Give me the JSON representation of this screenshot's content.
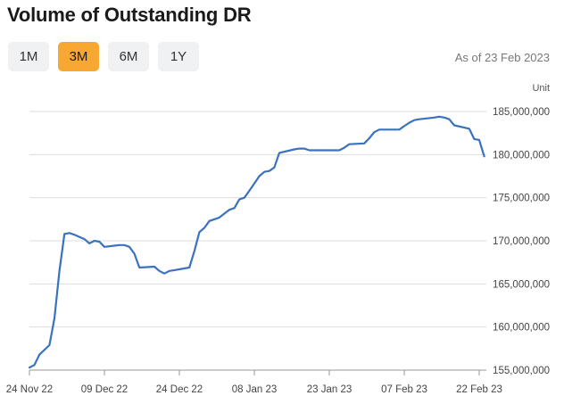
{
  "title": "Volume of Outstanding DR",
  "range_buttons": [
    "1M",
    "3M",
    "6M",
    "1Y"
  ],
  "active_range": "3M",
  "as_of": "As of 23 Feb 2023",
  "colors": {
    "line": "#3a72c0",
    "accent": "#f7a832",
    "grid": "#dddddd"
  },
  "chart_data": {
    "type": "line",
    "title": "Volume of Outstanding DR",
    "unit_label": "Unit",
    "ylim": [
      155000000,
      185000000
    ],
    "yticks": [
      155000000,
      160000000,
      165000000,
      170000000,
      175000000,
      180000000,
      185000000
    ],
    "ytick_labels": [
      "155,000,000",
      "160,000,000",
      "165,000,000",
      "170,000,000",
      "175,000,000",
      "180,000,000",
      "185,000,000"
    ],
    "xticks": [
      "2022-11-24",
      "2022-12-09",
      "2022-12-24",
      "2023-01-08",
      "2023-01-23",
      "2023-02-07",
      "2023-02-22"
    ],
    "xtick_labels": [
      "24 Nov 22",
      "09 Dec 22",
      "24 Dec 22",
      "08 Jan 23",
      "23 Jan 23",
      "07 Feb 23",
      "22 Feb 23"
    ],
    "grid": "horizontal",
    "series": [
      {
        "x": [
          "2022-11-24",
          "2022-11-25",
          "2022-11-26",
          "2022-11-28",
          "2022-11-29",
          "2022-11-30",
          "2022-12-01",
          "2022-12-02",
          "2022-12-03",
          "2022-12-05",
          "2022-12-06",
          "2022-12-07",
          "2022-12-08",
          "2022-12-09",
          "2022-12-12",
          "2022-12-13",
          "2022-12-14",
          "2022-12-15",
          "2022-12-16",
          "2022-12-19",
          "2022-12-20",
          "2022-12-21",
          "2022-12-22",
          "2022-12-23",
          "2022-12-26",
          "2022-12-27",
          "2022-12-28",
          "2022-12-29",
          "2022-12-30",
          "2023-01-01",
          "2023-01-03",
          "2023-01-04",
          "2023-01-05",
          "2023-01-06",
          "2023-01-07",
          "2023-01-09",
          "2023-01-10",
          "2023-01-11",
          "2023-01-12",
          "2023-01-13",
          "2023-01-16",
          "2023-01-17",
          "2023-01-18",
          "2023-01-19",
          "2023-01-20",
          "2023-01-23",
          "2023-01-24",
          "2023-01-25",
          "2023-01-26",
          "2023-01-27",
          "2023-01-30",
          "2023-01-31",
          "2023-02-01",
          "2023-02-02",
          "2023-02-03",
          "2023-02-06",
          "2023-02-07",
          "2023-02-08",
          "2023-02-09",
          "2023-02-10",
          "2023-02-13",
          "2023-02-14",
          "2023-02-15",
          "2023-02-16",
          "2023-02-17",
          "2023-02-20",
          "2023-02-21",
          "2023-02-22",
          "2023-02-23"
        ],
        "y": [
          155300000,
          155600000,
          156800000,
          157900000,
          161000000,
          166500000,
          170800000,
          170900000,
          170700000,
          170200000,
          169700000,
          170000000,
          169900000,
          169300000,
          169500000,
          169500000,
          169300000,
          168500000,
          166900000,
          167000000,
          166500000,
          166200000,
          166500000,
          166600000,
          166900000,
          168800000,
          171000000,
          171500000,
          172300000,
          172700000,
          173600000,
          173800000,
          174800000,
          175000000,
          175800000,
          177500000,
          178000000,
          178100000,
          178500000,
          180200000,
          180600000,
          180700000,
          180700000,
          180500000,
          180500000,
          180500000,
          180500000,
          180500000,
          180800000,
          181200000,
          181300000,
          181900000,
          182600000,
          182900000,
          182900000,
          182900000,
          183300000,
          183700000,
          184000000,
          184100000,
          184300000,
          184400000,
          184300000,
          184100000,
          183400000,
          183000000,
          181800000,
          181700000,
          179800000
        ]
      }
    ]
  }
}
